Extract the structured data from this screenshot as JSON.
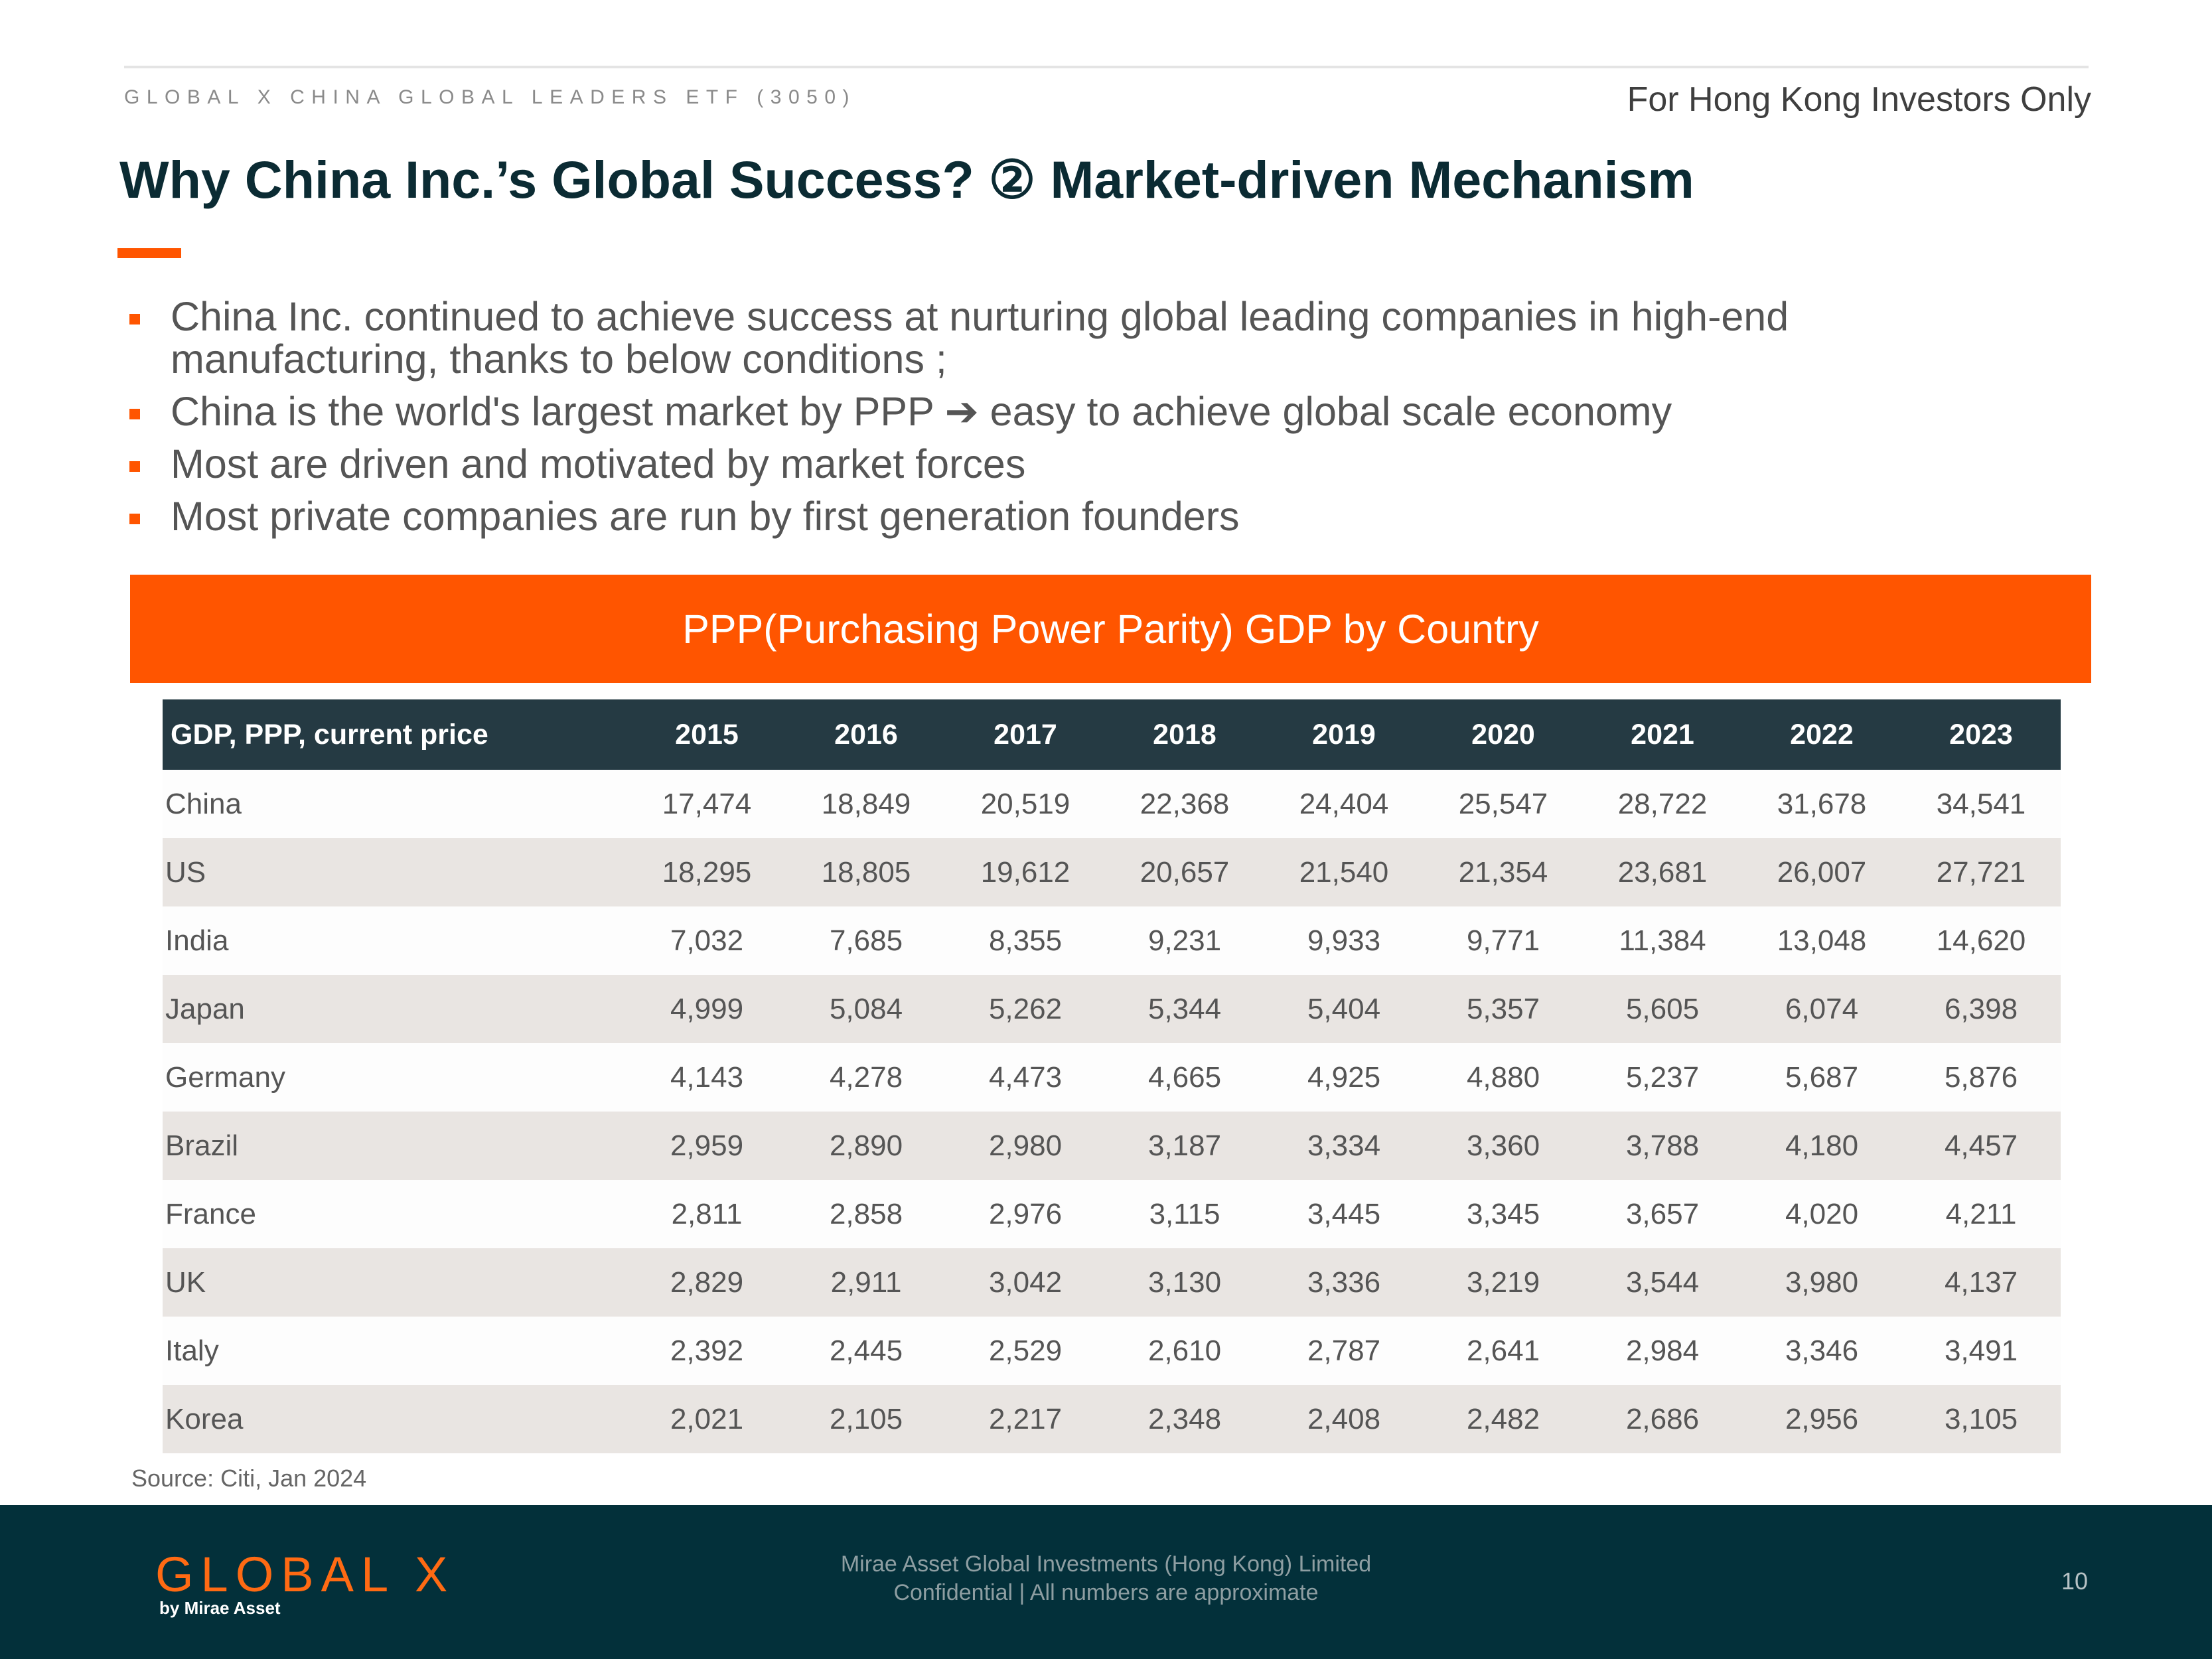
{
  "header": {
    "fund_name": "GLOBAL X CHINA GLOBAL LEADERS ETF (3050)",
    "audience": "For Hong Kong Investors Only"
  },
  "title": "Why China Inc.’s Global Success? ② Market-driven Mechanism",
  "bullets": [
    "China Inc. continued to achieve success at nurturing global leading companies in high-end manufacturing, thanks to below conditions ;",
    "China is the world's largest market by PPP ➔ easy to achieve global scale economy",
    "Most are driven and motivated by market forces",
    "Most private companies are run by first generation founders"
  ],
  "table": {
    "banner": "PPP(Purchasing Power Parity) GDP by Country",
    "header_label": "GDP, PPP, current price",
    "years": [
      "2015",
      "2016",
      "2017",
      "2018",
      "2019",
      "2020",
      "2021",
      "2022",
      "2023"
    ],
    "rows": [
      {
        "country": "China",
        "values": [
          "17,474",
          "18,849",
          "20,519",
          "22,368",
          "24,404",
          "25,547",
          "28,722",
          "31,678",
          "34,541"
        ]
      },
      {
        "country": "US",
        "values": [
          "18,295",
          "18,805",
          "19,612",
          "20,657",
          "21,540",
          "21,354",
          "23,681",
          "26,007",
          "27,721"
        ]
      },
      {
        "country": "India",
        "values": [
          "7,032",
          "7,685",
          "8,355",
          "9,231",
          "9,933",
          "9,771",
          "11,384",
          "13,048",
          "14,620"
        ]
      },
      {
        "country": "Japan",
        "values": [
          "4,999",
          "5,084",
          "5,262",
          "5,344",
          "5,404",
          "5,357",
          "5,605",
          "6,074",
          "6,398"
        ]
      },
      {
        "country": "Germany",
        "values": [
          "4,143",
          "4,278",
          "4,473",
          "4,665",
          "4,925",
          "4,880",
          "5,237",
          "5,687",
          "5,876"
        ]
      },
      {
        "country": "Brazil",
        "values": [
          "2,959",
          "2,890",
          "2,980",
          "3,187",
          "3,334",
          "3,360",
          "3,788",
          "4,180",
          "4,457"
        ]
      },
      {
        "country": "France",
        "values": [
          "2,811",
          "2,858",
          "2,976",
          "3,115",
          "3,445",
          "3,345",
          "3,657",
          "4,020",
          "4,211"
        ]
      },
      {
        "country": "UK",
        "values": [
          "2,829",
          "2,911",
          "3,042",
          "3,130",
          "3,336",
          "3,219",
          "3,544",
          "3,980",
          "4,137"
        ]
      },
      {
        "country": "Italy",
        "values": [
          "2,392",
          "2,445",
          "2,529",
          "2,610",
          "2,787",
          "2,641",
          "2,984",
          "3,346",
          "3,491"
        ]
      },
      {
        "country": "Korea",
        "values": [
          "2,021",
          "2,105",
          "2,217",
          "2,348",
          "2,408",
          "2,482",
          "2,686",
          "2,956",
          "3,105"
        ]
      }
    ]
  },
  "source": "Source: Citi, Jan 2024",
  "footer": {
    "logo_text": "GLOBAL X",
    "logo_sub": "by Mirae Asset",
    "company": "Mirae Asset Global Investments (Hong Kong) Limited",
    "confidential": "Confidential | All numbers are approximate",
    "page_number": "10"
  },
  "colors": {
    "accent": "#ff5500",
    "title": "#0b2b33",
    "table_header": "#253a43",
    "footer": "#03303a"
  }
}
